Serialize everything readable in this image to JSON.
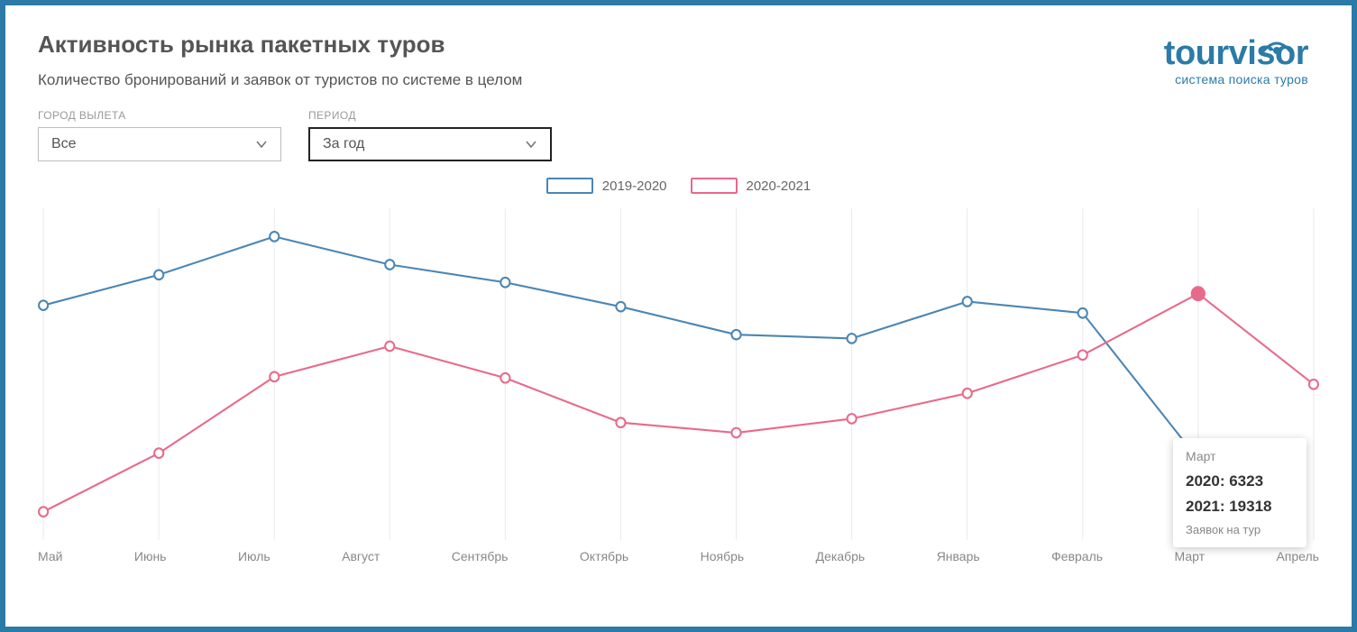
{
  "title": "Активность рынка пакетных туров",
  "subtitle": "Количество бронирований и заявок от туристов по системе в целом",
  "logo": {
    "name": "tourvisor",
    "tagline": "система поиска туров",
    "color": "#2b7ba8"
  },
  "filters": {
    "city": {
      "label": "ГОРОД ВЫЛЕТА",
      "value": "Все"
    },
    "period": {
      "label": "ПЕРИОД",
      "value": "За год",
      "focused": true
    }
  },
  "chart": {
    "type": "line",
    "categories": [
      "Май",
      "Июнь",
      "Июль",
      "Август",
      "Сентябрь",
      "Октябрь",
      "Ноябрь",
      "Декабрь",
      "Январь",
      "Февраль",
      "Март",
      "Апрель"
    ],
    "series": [
      {
        "name": "2019-2020",
        "color": "#4b86b4",
        "values": [
          18400,
          20800,
          23800,
          21600,
          20200,
          18300,
          16100,
          15800,
          18700,
          17800,
          6323,
          null
        ]
      },
      {
        "name": "2020-2021",
        "color": "#e86a8a",
        "values": [
          2200,
          6800,
          12800,
          15200,
          12700,
          9200,
          8400,
          9500,
          11500,
          14500,
          19318,
          12200
        ]
      }
    ],
    "ylim": [
      0,
      26000
    ],
    "grid_color": "#eaeaea",
    "background_color": "#ffffff",
    "marker": {
      "radius": 5,
      "fill": "#ffffff",
      "stroke_width": 2
    },
    "line_width": 2,
    "label_fontsize": 14,
    "label_color": "#888888",
    "highlight_index": 10,
    "highlight_series": 1,
    "highlight_marker_fill": "#e86a8a",
    "highlight_marker_radius": 7
  },
  "tooltip": {
    "title": "Март",
    "lines": [
      {
        "year": "2020",
        "value": "6323"
      },
      {
        "year": "2021",
        "value": "19318"
      }
    ],
    "footer": "Заявок на тур"
  }
}
